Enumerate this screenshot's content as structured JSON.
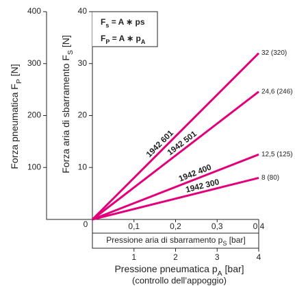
{
  "chart_data": {
    "type": "line",
    "x_label": {
      "text": "Pressione aria di sbarramento p",
      "sub": "S",
      "suffix": " [bar]"
    },
    "x2_label": {
      "text": "Pressione pneumatica p",
      "sub": "A",
      "suffix": " [bar]",
      "note": "(controllo dell’appoggio)"
    },
    "y_label": {
      "text": "Forza aria di sbarramento F",
      "sub": "S",
      "suffix": " [N]"
    },
    "y2_label": {
      "text": "Forza pneumatica F",
      "sub": "P",
      "suffix": " [N]"
    },
    "formulas": [
      {
        "text": "F",
        "sub": "s",
        "rest": " = A ∗ ps"
      },
      {
        "text": "F",
        "sub": "P",
        "rest": " = A ∗ p",
        "rest_sub": "A"
      }
    ],
    "xlim": [
      0,
      0.4
    ],
    "xticks": [
      {
        "value": 0.1,
        "label": "0,1"
      },
      {
        "value": 0.2,
        "label": "0,2"
      },
      {
        "value": 0.3,
        "label": "0,3"
      },
      {
        "value": 0.4,
        "label": "0,4"
      }
    ],
    "x2lim": [
      0,
      4
    ],
    "x2ticks": [
      1,
      2,
      3,
      4
    ],
    "ylim": [
      0,
      40
    ],
    "yticks": [
      0,
      10,
      20,
      30,
      40
    ],
    "y2lim": [
      0,
      400
    ],
    "y2ticks": [
      100,
      200,
      300,
      400
    ],
    "x": [
      0,
      0.4
    ],
    "series": [
      {
        "name": "1942 601",
        "color": "#e2007a",
        "values": [
          0,
          32
        ],
        "value_labels": [
          null,
          "32 (320)"
        ]
      },
      {
        "name": "1942 501",
        "color": "#e2007a",
        "values": [
          0,
          24.6
        ],
        "value_labels": [
          null,
          "24,6 (246)"
        ]
      },
      {
        "name": "1942 400",
        "color": "#e2007a",
        "values": [
          0,
          12.5
        ],
        "value_labels": [
          null,
          "12,5 (125)"
        ]
      },
      {
        "name": "1942 300",
        "color": "#e2007a",
        "values": [
          0,
          8
        ],
        "value_labels": [
          null,
          "8 (80)"
        ]
      }
    ]
  }
}
